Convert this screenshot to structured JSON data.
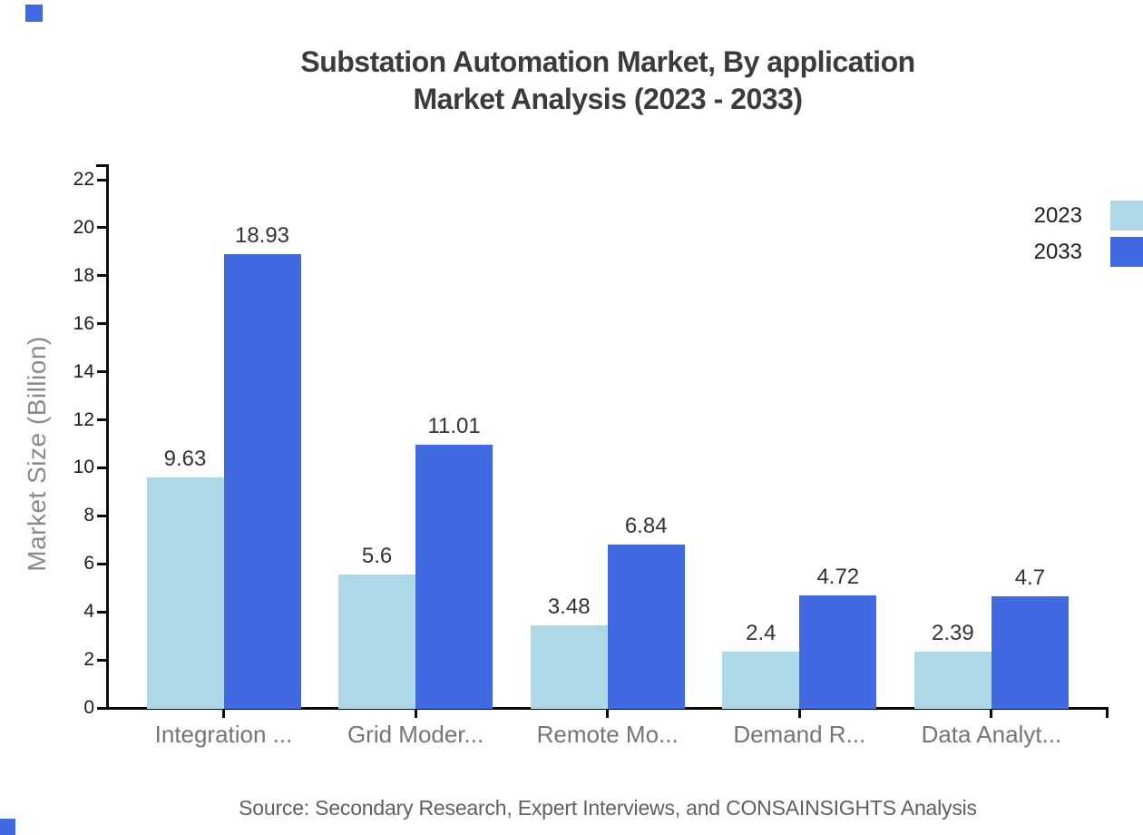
{
  "title": {
    "line1": "Substation Automation Market, By application",
    "line2": "Market Analysis (2023 - 2033)"
  },
  "chart_data": {
    "type": "bar",
    "categories": [
      "Integration ...",
      "Grid Moder...",
      "Remote Mo...",
      "Demand R...",
      "Data Analyt..."
    ],
    "series": [
      {
        "name": "2023",
        "color": "#ADD8E6",
        "values": [
          9.63,
          5.6,
          3.48,
          2.4,
          2.39
        ]
      },
      {
        "name": "2033",
        "color": "#4169E1",
        "values": [
          18.93,
          11.01,
          6.84,
          4.72,
          4.7
        ]
      }
    ],
    "xlabel": "",
    "ylabel": "Market Size (Billion)",
    "ylim": [
      0,
      22
    ],
    "yticks": [
      0,
      2,
      4,
      6,
      8,
      10,
      12,
      14,
      16,
      18,
      20,
      22
    ],
    "grid": false,
    "legend_position": "top-right",
    "axis_color": "#0a0a0a"
  },
  "legend": {
    "items": [
      {
        "label": "2023",
        "color": "#ADD8E6"
      },
      {
        "label": "2033",
        "color": "#4169E1"
      }
    ]
  },
  "source": {
    "text": "Source: Secondary Research, Expert Interviews, and CONSAINSIGHTS Analysis"
  },
  "decorations": {
    "corner_squares_color": "#4169E1"
  }
}
